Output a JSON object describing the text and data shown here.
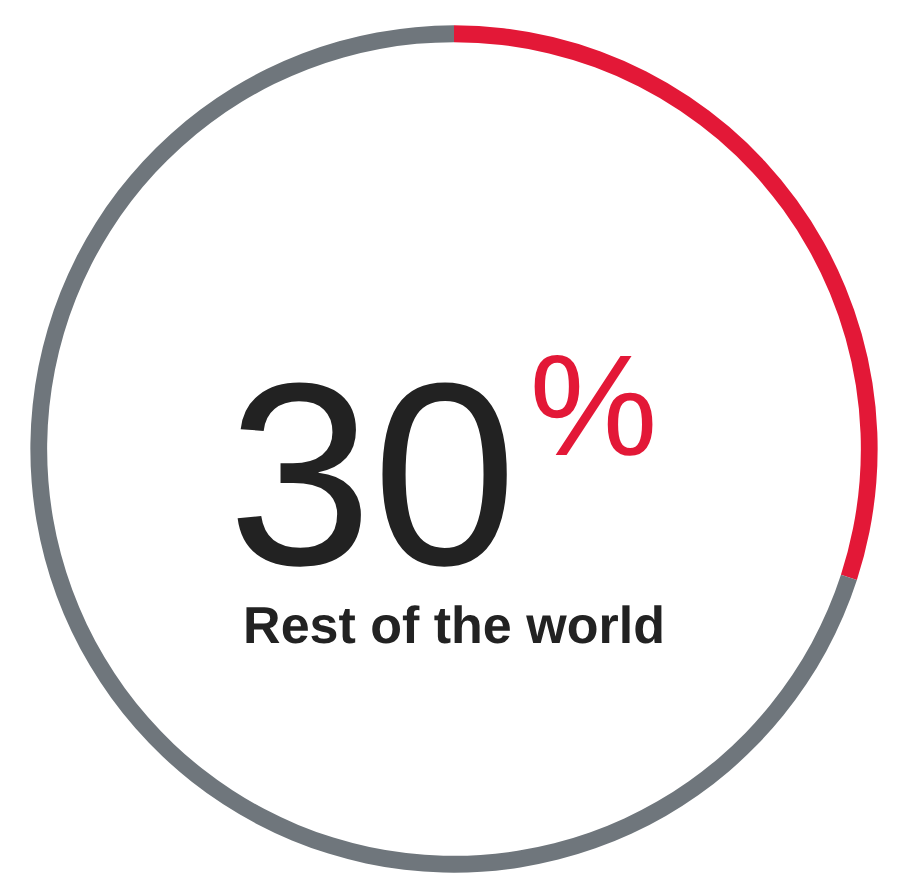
{
  "chart_data": {
    "type": "donut",
    "title": "Rest of the world",
    "categories": [
      null,
      null
    ],
    "values": [
      30,
      70
    ],
    "colors": [
      "#e31837",
      "#6f767c"
    ],
    "annotations": [
      "30%"
    ]
  }
}
